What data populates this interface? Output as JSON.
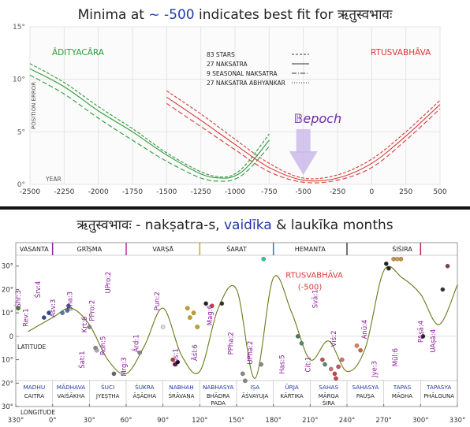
{
  "top": {
    "title_parts": [
      "Minima at ",
      "~ -500",
      " indicates best fit for ",
      "ऋतुस्वभावः"
    ],
    "chart_data": {
      "type": "line",
      "xlabel": "YEAR",
      "ylabel": "POSITION ERROR",
      "xlim": [
        -2500,
        500
      ],
      "ylim": [
        0,
        15
      ],
      "x_ticks": [
        -2500,
        -2250,
        -2000,
        -1750,
        -1500,
        -1250,
        -1000,
        -750,
        -500,
        -250,
        0,
        250,
        500
      ],
      "y_ticks": [
        0,
        5,
        10,
        15
      ],
      "y_tick_labels": [
        "0°",
        "5°",
        "10°",
        "15°"
      ],
      "group_labels": [
        {
          "text": "ĀDITYACĀRA",
          "color": "#2e9a3a"
        },
        {
          "text": "RTUSVABHĀVA",
          "color": "#d83a3a"
        }
      ],
      "annotation": "𝔹epoch",
      "legend": {
        "placement": "top-center",
        "entries": [
          "83 STARS",
          "27 NAKSATRA",
          "9 SEASONAL NAKSATRA",
          "27 NAKSATRA ABHYANKAR"
        ]
      },
      "series": [
        {
          "color": "#2e9a3a",
          "x": [
            -2500,
            -2250,
            -2000,
            -1750,
            -1500,
            -1250,
            -1100,
            -1000,
            -900,
            -750
          ],
          "y": [
            11.0,
            9.3,
            7.0,
            5.0,
            2.8,
            1.0,
            0.6,
            0.8,
            1.8,
            4.2
          ]
        },
        {
          "color": "#2e9a3a",
          "x": [
            -2500,
            -2250,
            -2000,
            -1750,
            -1500,
            -1250,
            -1100,
            -1000,
            -900,
            -750
          ],
          "y": [
            11.5,
            9.7,
            7.4,
            5.3,
            3.0,
            1.2,
            0.7,
            1.0,
            2.2,
            4.8
          ]
        },
        {
          "color": "#2e9a3a",
          "x": [
            -2500,
            -2250,
            -2000,
            -1750,
            -1500,
            -1250,
            -1100,
            -1000,
            -900,
            -750
          ],
          "y": [
            10.4,
            8.6,
            6.3,
            4.2,
            2.2,
            0.6,
            0.3,
            0.5,
            1.4,
            3.6
          ]
        },
        {
          "color": "#d83a3a",
          "x": [
            -1500,
            -1250,
            -1000,
            -750,
            -500,
            -250,
            0,
            250,
            500
          ],
          "y": [
            8.3,
            6.1,
            3.8,
            1.6,
            0.4,
            0.6,
            2.0,
            4.6,
            7.6
          ]
        },
        {
          "color": "#d83a3a",
          "x": [
            -1500,
            -1250,
            -1000,
            -750,
            -500,
            -250,
            0,
            250,
            500
          ],
          "y": [
            8.9,
            6.7,
            4.3,
            2.0,
            0.6,
            0.9,
            2.4,
            5.0,
            8.0
          ]
        },
        {
          "color": "#d83a3a",
          "x": [
            -1500,
            -1250,
            -1000,
            -750,
            -500,
            -250,
            0,
            250,
            500
          ],
          "y": [
            7.7,
            5.5,
            3.3,
            1.2,
            0.2,
            0.4,
            1.6,
            4.2,
            7.2
          ]
        }
      ]
    }
  },
  "bottom": {
    "title_parts": [
      "ऋतुस्वभावः -  nakṣatra-s, ",
      "vaidīka",
      " & laukīka months"
    ],
    "chart_data": {
      "type": "scatter",
      "xlabel": "LONGITUDE",
      "ylabel": "LATITUDE",
      "xlim": [
        -30,
        330
      ],
      "ylim": [
        -30,
        40
      ],
      "x_ticks": [
        -30,
        0,
        30,
        60,
        90,
        120,
        150,
        180,
        210,
        240,
        270,
        300,
        330
      ],
      "x_tick_labels": [
        "330°",
        "0°",
        "30°",
        "60°",
        "90°",
        "120°",
        "150°",
        "180°",
        "210°",
        "240°",
        "270°",
        "300°",
        "330°"
      ],
      "y_ticks": [
        -30,
        -20,
        -10,
        0,
        10,
        20,
        30
      ],
      "y_tick_labels": [
        "30°",
        "20°",
        "10°",
        "0",
        "10°",
        "20°",
        "30°"
      ],
      "seasons": [
        {
          "name": "VASANTA",
          "start": -30,
          "end": 0,
          "color": "#ffffff"
        },
        {
          "name": "GRĪṢMA",
          "start": 0,
          "end": 60,
          "color": "#7a2a9a"
        },
        {
          "name": "VARṢĀ",
          "start": 60,
          "end": 120,
          "color": "#c02a9a"
        },
        {
          "name": "ŚARAT",
          "start": 120,
          "end": 180,
          "color": "#b8b020"
        },
        {
          "name": "HEMANTA",
          "start": 180,
          "end": 240,
          "color": "#2a7ab8"
        },
        {
          "name": "ŚIŚIRA",
          "start": 240,
          "end": 330,
          "color": "#555555"
        }
      ],
      "season_borders": [
        {
          "x": 0,
          "color": "#7a2a9a"
        },
        {
          "x": 60,
          "color": "#c02a9a"
        },
        {
          "x": 120,
          "color": "#b8b020"
        },
        {
          "x": 180,
          "color": "#2a7ab8"
        },
        {
          "x": 240,
          "color": "#444444"
        },
        {
          "x": 300,
          "color": "#c0205a"
        }
      ],
      "annotation": {
        "text": "RTUSVABHĀVA",
        "sub": "(-500)",
        "color": "#d83a3a"
      },
      "months": [
        {
          "vaidika": "MADHU",
          "laukika": "CAITRA"
        },
        {
          "vaidika": "MĀDHAVA",
          "laukika": "VAIŚĀKHA"
        },
        {
          "vaidika": "ŚUCI",
          "laukika": "JYEṢṬHA"
        },
        {
          "vaidika": "ŚUKRA",
          "laukika": "ĀṢĀḌHA"
        },
        {
          "vaidika": "NABHAḤ",
          "laukika": "ŚRĀVAṆA"
        },
        {
          "vaidika": "NABHASYA",
          "laukika": "BHĀDRA PADA"
        },
        {
          "vaidika": "IṢA",
          "laukika": "ĀŚVAYUJA"
        },
        {
          "vaidika": "ŪRJA",
          "laukika": "KĀRTIKA"
        },
        {
          "vaidika": "SAHAS",
          "laukika": "MĀRGA ŚIRA"
        },
        {
          "vaidika": "SAHASYA",
          "laukika": "PAUṢA"
        },
        {
          "vaidika": "TAPAS",
          "laukika": "MĀGHA"
        },
        {
          "vaidika": "TAPASYA",
          "laukika": "PHĀLGUNA"
        }
      ],
      "nakshatra_labels": [
        {
          "text": "Rev:1",
          "lon": -20,
          "lat": 8
        },
        {
          "text": "Aśv:3",
          "lon": 2,
          "lat": 12
        },
        {
          "text": "Bha:3",
          "lon": 16,
          "lat": 15
        },
        {
          "text": "Kṛt:6",
          "lon": 28,
          "lat": 5
        },
        {
          "text": "Roh:5",
          "lon": 43,
          "lat": -4
        },
        {
          "text": "Mrg:3",
          "lon": 60,
          "lat": -13
        },
        {
          "text": "Ārd:1",
          "lon": 70,
          "lat": -3
        },
        {
          "text": "Pun:2",
          "lon": 87,
          "lat": 15
        },
        {
          "text": "Pus:1",
          "lon": 102,
          "lat": -9
        },
        {
          "text": "Āśl:6",
          "lon": 118,
          "lat": -7
        },
        {
          "text": "Mag:6",
          "lon": 130,
          "lat": 9
        },
        {
          "text": "PPha:2",
          "lon": 147,
          "lat": -3
        },
        {
          "text": "UPha:2",
          "lon": 163,
          "lat": -7
        },
        {
          "text": "Has:5",
          "lon": 189,
          "lat": -12
        },
        {
          "text": "Cit:1",
          "lon": 210,
          "lat": -12
        },
        {
          "text": "Svā:1",
          "lon": 216,
          "lat": 16
        },
        {
          "text": "Viś:2",
          "lon": 231,
          "lat": -1
        },
        {
          "text": "Anū:4",
          "lon": 256,
          "lat": 3
        },
        {
          "text": "Jye:3",
          "lon": 264,
          "lat": -14
        },
        {
          "text": "Mūl:6",
          "lon": 281,
          "lat": -9
        },
        {
          "text": "PAṣā:4",
          "lon": 302,
          "lat": 2
        },
        {
          "text": "UAṣā:4",
          "lon": 312,
          "lat": -2
        },
        {
          "text": "Śhr:3",
          "lon": 334,
          "lat": 16
        },
        {
          "text": "Śrv:4",
          "lon": 350,
          "lat": 20
        },
        {
          "text": "Śat:1",
          "lon": 386,
          "lat": -10
        },
        {
          "text": "PPro:2",
          "lon": 394,
          "lat": 11
        },
        {
          "text": "UPro:2",
          "lon": 407,
          "lat": 23
        }
      ],
      "curve": {
        "color": "#6a7a1a",
        "x": [
          -20,
          0,
          15,
          30,
          45,
          60,
          75,
          90,
          105,
          120,
          135,
          150,
          165,
          180,
          195,
          210,
          225,
          240,
          255,
          270,
          285,
          300,
          315,
          330
        ],
        "y": [
          2,
          8,
          12,
          5,
          -10,
          -16,
          -4,
          12,
          -8,
          -15,
          12,
          20,
          -18,
          25,
          10,
          -10,
          -2,
          -15,
          -5,
          28,
          25,
          18,
          5,
          22
        ]
      },
      "points": [
        {
          "lon": -28,
          "lat": 12,
          "color": "#4a7a2a"
        },
        {
          "lon": -7,
          "lat": 8,
          "color": "#2a4aa0"
        },
        {
          "lon": -3,
          "lat": 10,
          "color": "#2a4aa0"
        },
        {
          "lon": 8,
          "lat": 10,
          "color": "#4a7ab8"
        },
        {
          "lon": 12,
          "lat": 11,
          "color": "#4a7ab8"
        },
        {
          "lon": 13,
          "lat": 13,
          "color": "#2a6aa0"
        },
        {
          "lon": 30,
          "lat": 4,
          "color": "#888888"
        },
        {
          "lon": 35,
          "lat": -5,
          "color": "#888888"
        },
        {
          "lon": 36,
          "lat": -6,
          "color": "#aaaaaa"
        },
        {
          "lon": 50,
          "lat": -16,
          "color": "#666666"
        },
        {
          "lon": 71,
          "lat": -7,
          "color": "#888888"
        },
        {
          "lon": 90,
          "lat": 4,
          "color": "#dddddd"
        },
        {
          "lon": 98,
          "lat": -10,
          "color": "#aa4422"
        },
        {
          "lon": 100,
          "lat": -12,
          "color": "#332222"
        },
        {
          "lon": 102,
          "lat": -11,
          "color": "#111111"
        },
        {
          "lon": 110,
          "lat": 12,
          "color": "#c8a020"
        },
        {
          "lon": 112,
          "lat": 8,
          "color": "#c8a020"
        },
        {
          "lon": 115,
          "lat": 10,
          "color": "#c8a020"
        },
        {
          "lon": 118,
          "lat": 4,
          "color": "#c8a020"
        },
        {
          "lon": 125,
          "lat": 14,
          "color": "#222222"
        },
        {
          "lon": 130,
          "lat": 13,
          "color": "#d04040"
        },
        {
          "lon": 138,
          "lat": 14,
          "color": "#333333"
        },
        {
          "lon": 155,
          "lat": -16,
          "color": "#888888"
        },
        {
          "lon": 157,
          "lat": -19,
          "color": "#888888"
        },
        {
          "lon": 170,
          "lat": -12,
          "color": "#888888"
        },
        {
          "lon": 172,
          "lat": 33,
          "color": "#30c0a0"
        },
        {
          "lon": 200,
          "lat": 0,
          "color": "#4a7a5a"
        },
        {
          "lon": 203,
          "lat": -3,
          "color": "#5a8a6a"
        },
        {
          "lon": 220,
          "lat": -10,
          "color": "#c05050"
        },
        {
          "lon": 222,
          "lat": -12,
          "color": "#5a8a6a"
        },
        {
          "lon": 227,
          "lat": -14,
          "color": "#d07070"
        },
        {
          "lon": 230,
          "lat": -16,
          "color": "#d04040"
        },
        {
          "lon": 231,
          "lat": -18,
          "color": "#d04040"
        },
        {
          "lon": 233,
          "lat": -13,
          "color": "#d05050"
        },
        {
          "lon": 236,
          "lat": -10,
          "color": "#d07070"
        },
        {
          "lon": 248,
          "lat": -4,
          "color": "#e08060"
        },
        {
          "lon": 251,
          "lat": -6,
          "color": "#d06040"
        },
        {
          "lon": 272,
          "lat": 31,
          "color": "#222222"
        },
        {
          "lon": 274,
          "lat": 29,
          "color": "#222222"
        },
        {
          "lon": 278,
          "lat": 33,
          "color": "#c89040"
        },
        {
          "lon": 281,
          "lat": 33,
          "color": "#d0a050"
        },
        {
          "lon": 284,
          "lat": 33,
          "color": "#c89040"
        },
        {
          "lon": 302,
          "lat": 0,
          "color": "#222222"
        },
        {
          "lon": 318,
          "lat": 20,
          "color": "#333333"
        },
        {
          "lon": 322,
          "lat": 30,
          "color": "#8a3a5a"
        }
      ]
    }
  }
}
